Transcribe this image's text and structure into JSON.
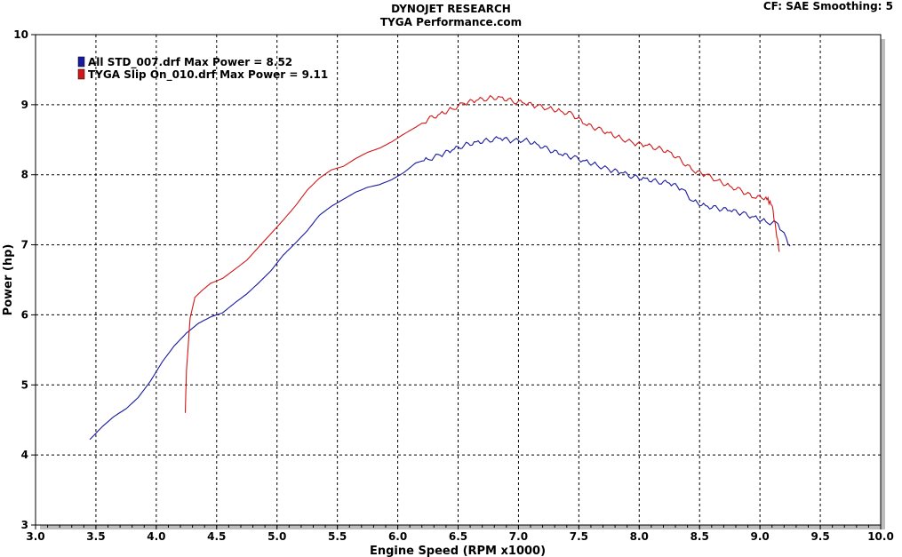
{
  "header": {
    "title": "DYNOJET RESEARCH",
    "subtitle": "TYGA Performance.com",
    "cf_label": "CF: SAE  Smoothing: 5"
  },
  "chart_data": {
    "type": "line",
    "xlabel": "Engine Speed (RPM x1000)",
    "ylabel": "Power (hp)",
    "xlim": [
      3.0,
      10.0
    ],
    "ylim": [
      3,
      10
    ],
    "xticks": [
      "3.0",
      "3.5",
      "4.0",
      "4.5",
      "5.0",
      "5.5",
      "6.0",
      "6.5",
      "7.0",
      "7.5",
      "8.0",
      "8.5",
      "9.0",
      "9.5",
      "10.0"
    ],
    "yticks": [
      "3",
      "4",
      "5",
      "6",
      "7",
      "8",
      "9",
      "10"
    ],
    "grid": true,
    "legend_position": "top-left",
    "series": [
      {
        "name": "All STD_007.drf Max Power = 8.52",
        "color": "#1a1aa0",
        "x": [
          3.45,
          3.55,
          3.65,
          3.75,
          3.85,
          3.95,
          4.05,
          4.15,
          4.25,
          4.35,
          4.45,
          4.55,
          4.65,
          4.75,
          4.85,
          4.95,
          5.05,
          5.15,
          5.25,
          5.35,
          5.45,
          5.55,
          5.65,
          5.75,
          5.85,
          5.95,
          6.05,
          6.15,
          6.25,
          6.35,
          6.45,
          6.55,
          6.65,
          6.75,
          6.85,
          6.95,
          7.05,
          7.15,
          7.25,
          7.35,
          7.45,
          7.55,
          7.65,
          7.75,
          7.85,
          7.95,
          8.05,
          8.15,
          8.25,
          8.35,
          8.45,
          8.55,
          8.65,
          8.75,
          8.85,
          8.95,
          9.05,
          9.15,
          9.25
        ],
        "y": [
          4.22,
          4.4,
          4.55,
          4.66,
          4.82,
          5.05,
          5.33,
          5.56,
          5.74,
          5.88,
          5.97,
          6.03,
          6.17,
          6.3,
          6.46,
          6.63,
          6.85,
          7.02,
          7.2,
          7.42,
          7.55,
          7.65,
          7.75,
          7.82,
          7.86,
          7.93,
          8.03,
          8.17,
          8.22,
          8.28,
          8.35,
          8.42,
          8.47,
          8.49,
          8.52,
          8.48,
          8.5,
          8.44,
          8.36,
          8.29,
          8.25,
          8.2,
          8.14,
          8.07,
          8.03,
          7.97,
          7.95,
          7.9,
          7.88,
          7.8,
          7.62,
          7.56,
          7.52,
          7.49,
          7.45,
          7.4,
          7.33,
          7.3,
          6.98
        ]
      },
      {
        "name": "TYGA Slip On_010.drf Max Power = 9.11",
        "color": "#d01818",
        "x": [
          4.24,
          4.25,
          4.28,
          4.32,
          4.38,
          4.45,
          4.55,
          4.65,
          4.75,
          4.85,
          4.95,
          5.05,
          5.15,
          5.25,
          5.35,
          5.45,
          5.55,
          5.65,
          5.75,
          5.85,
          5.95,
          6.05,
          6.15,
          6.25,
          6.35,
          6.45,
          6.55,
          6.65,
          6.75,
          6.85,
          6.95,
          7.05,
          7.15,
          7.25,
          7.35,
          7.45,
          7.55,
          7.65,
          7.75,
          7.85,
          7.95,
          8.05,
          8.15,
          8.25,
          8.35,
          8.45,
          8.55,
          8.65,
          8.75,
          8.85,
          8.95,
          9.05,
          9.1,
          9.13,
          9.16
        ],
        "y": [
          4.6,
          5.2,
          5.95,
          6.25,
          6.35,
          6.45,
          6.52,
          6.65,
          6.78,
          6.97,
          7.16,
          7.35,
          7.55,
          7.78,
          7.95,
          8.07,
          8.12,
          8.23,
          8.32,
          8.38,
          8.47,
          8.58,
          8.68,
          8.79,
          8.87,
          8.94,
          9.02,
          9.06,
          9.09,
          9.11,
          9.05,
          9.02,
          8.98,
          8.95,
          8.91,
          8.86,
          8.72,
          8.66,
          8.6,
          8.52,
          8.45,
          8.42,
          8.38,
          8.33,
          8.2,
          8.05,
          8.0,
          7.92,
          7.84,
          7.77,
          7.67,
          7.68,
          7.56,
          7.25,
          6.9
        ]
      }
    ]
  }
}
